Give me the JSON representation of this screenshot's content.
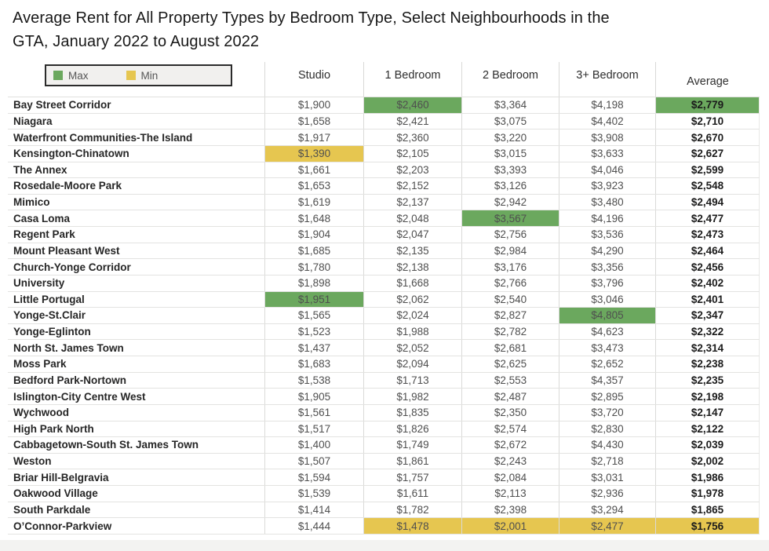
{
  "title": "Average Rent for All Property Types by Bedroom Type, Select Neighbourhoods in the GTA, January 2022 to August 2022",
  "title_line1": "Average Rent for All Property Types by Bedroom Type, Select Neighbourhoods in the",
  "title_line2": "GTA, January 2022 to August 2022",
  "legend": {
    "items": [
      {
        "label": "Max",
        "color": "#6BA85E"
      },
      {
        "label": "Min",
        "color": "#E6C650"
      }
    ]
  },
  "colors": {
    "max_highlight": "#6BA85E",
    "min_highlight": "#E6C650"
  },
  "chart_data": {
    "type": "table",
    "title": "Average Rent for All Property Types by Bedroom Type, Select Neighbourhoods in the GTA, January 2022 to August 2022",
    "column_headers": [
      "Studio",
      "1 Bedroom",
      "2 Bedroom",
      "3+ Bedroom",
      "Average"
    ],
    "highlight_meaning": {
      "max": "Max",
      "min": "Min"
    },
    "rows": [
      {
        "name": "Bay Street Corridor",
        "values": [
          "$1,900",
          "$2,460",
          "$3,364",
          "$4,198",
          "$2,779"
        ],
        "highlights": [
          null,
          "max",
          null,
          null,
          "max"
        ]
      },
      {
        "name": "Niagara",
        "values": [
          "$1,658",
          "$2,421",
          "$3,075",
          "$4,402",
          "$2,710"
        ],
        "highlights": [
          null,
          null,
          null,
          null,
          null
        ]
      },
      {
        "name": "Waterfront Communities-The Island",
        "values": [
          "$1,917",
          "$2,360",
          "$3,220",
          "$3,908",
          "$2,670"
        ],
        "highlights": [
          null,
          null,
          null,
          null,
          null
        ]
      },
      {
        "name": "Kensington-Chinatown",
        "values": [
          "$1,390",
          "$2,105",
          "$3,015",
          "$3,633",
          "$2,627"
        ],
        "highlights": [
          "min",
          null,
          null,
          null,
          null
        ]
      },
      {
        "name": "The Annex",
        "values": [
          "$1,661",
          "$2,203",
          "$3,393",
          "$4,046",
          "$2,599"
        ],
        "highlights": [
          null,
          null,
          null,
          null,
          null
        ]
      },
      {
        "name": "Rosedale-Moore Park",
        "values": [
          "$1,653",
          "$2,152",
          "$3,126",
          "$3,923",
          "$2,548"
        ],
        "highlights": [
          null,
          null,
          null,
          null,
          null
        ]
      },
      {
        "name": "Mimico",
        "values": [
          "$1,619",
          "$2,137",
          "$2,942",
          "$3,480",
          "$2,494"
        ],
        "highlights": [
          null,
          null,
          null,
          null,
          null
        ]
      },
      {
        "name": "Casa Loma",
        "values": [
          "$1,648",
          "$2,048",
          "$3,567",
          "$4,196",
          "$2,477"
        ],
        "highlights": [
          null,
          null,
          "max",
          null,
          null
        ]
      },
      {
        "name": "Regent Park",
        "values": [
          "$1,904",
          "$2,047",
          "$2,756",
          "$3,536",
          "$2,473"
        ],
        "highlights": [
          null,
          null,
          null,
          null,
          null
        ]
      },
      {
        "name": "Mount Pleasant West",
        "values": [
          "$1,685",
          "$2,135",
          "$2,984",
          "$4,290",
          "$2,464"
        ],
        "highlights": [
          null,
          null,
          null,
          null,
          null
        ]
      },
      {
        "name": "Church-Yonge Corridor",
        "values": [
          "$1,780",
          "$2,138",
          "$3,176",
          "$3,356",
          "$2,456"
        ],
        "highlights": [
          null,
          null,
          null,
          null,
          null
        ]
      },
      {
        "name": "University",
        "values": [
          "$1,898",
          "$1,668",
          "$2,766",
          "$3,796",
          "$2,402"
        ],
        "highlights": [
          null,
          null,
          null,
          null,
          null
        ]
      },
      {
        "name": "Little Portugal",
        "values": [
          "$1,951",
          "$2,062",
          "$2,540",
          "$3,046",
          "$2,401"
        ],
        "highlights": [
          "max",
          null,
          null,
          null,
          null
        ]
      },
      {
        "name": "Yonge-St.Clair",
        "values": [
          "$1,565",
          "$2,024",
          "$2,827",
          "$4,805",
          "$2,347"
        ],
        "highlights": [
          null,
          null,
          null,
          "max",
          null
        ]
      },
      {
        "name": "Yonge-Eglinton",
        "values": [
          "$1,523",
          "$1,988",
          "$2,782",
          "$4,623",
          "$2,322"
        ],
        "highlights": [
          null,
          null,
          null,
          null,
          null
        ]
      },
      {
        "name": "North St. James Town",
        "values": [
          "$1,437",
          "$2,052",
          "$2,681",
          "$3,473",
          "$2,314"
        ],
        "highlights": [
          null,
          null,
          null,
          null,
          null
        ]
      },
      {
        "name": "Moss Park",
        "values": [
          "$1,683",
          "$2,094",
          "$2,625",
          "$2,652",
          "$2,238"
        ],
        "highlights": [
          null,
          null,
          null,
          null,
          null
        ]
      },
      {
        "name": "Bedford Park-Nortown",
        "values": [
          "$1,538",
          "$1,713",
          "$2,553",
          "$4,357",
          "$2,235"
        ],
        "highlights": [
          null,
          null,
          null,
          null,
          null
        ]
      },
      {
        "name": "Islington-City Centre West",
        "values": [
          "$1,905",
          "$1,982",
          "$2,487",
          "$2,895",
          "$2,198"
        ],
        "highlights": [
          null,
          null,
          null,
          null,
          null
        ]
      },
      {
        "name": "Wychwood",
        "values": [
          "$1,561",
          "$1,835",
          "$2,350",
          "$3,720",
          "$2,147"
        ],
        "highlights": [
          null,
          null,
          null,
          null,
          null
        ]
      },
      {
        "name": "High Park North",
        "values": [
          "$1,517",
          "$1,826",
          "$2,574",
          "$2,830",
          "$2,122"
        ],
        "highlights": [
          null,
          null,
          null,
          null,
          null
        ]
      },
      {
        "name": "Cabbagetown-South St. James Town",
        "values": [
          "$1,400",
          "$1,749",
          "$2,672",
          "$4,430",
          "$2,039"
        ],
        "highlights": [
          null,
          null,
          null,
          null,
          null
        ]
      },
      {
        "name": "Weston",
        "values": [
          "$1,507",
          "$1,861",
          "$2,243",
          "$2,718",
          "$2,002"
        ],
        "highlights": [
          null,
          null,
          null,
          null,
          null
        ]
      },
      {
        "name": "Briar Hill-Belgravia",
        "values": [
          "$1,594",
          "$1,757",
          "$2,084",
          "$3,031",
          "$1,986"
        ],
        "highlights": [
          null,
          null,
          null,
          null,
          null
        ]
      },
      {
        "name": "Oakwood Village",
        "values": [
          "$1,539",
          "$1,611",
          "$2,113",
          "$2,936",
          "$1,978"
        ],
        "highlights": [
          null,
          null,
          null,
          null,
          null
        ]
      },
      {
        "name": "South Parkdale",
        "values": [
          "$1,414",
          "$1,782",
          "$2,398",
          "$3,294",
          "$1,865"
        ],
        "highlights": [
          null,
          null,
          null,
          null,
          null
        ]
      },
      {
        "name": "O’Connor-Parkview",
        "values": [
          "$1,444",
          "$1,478",
          "$2,001",
          "$2,477",
          "$1,756"
        ],
        "highlights": [
          null,
          "min",
          "min",
          "min",
          "min"
        ]
      }
    ]
  }
}
